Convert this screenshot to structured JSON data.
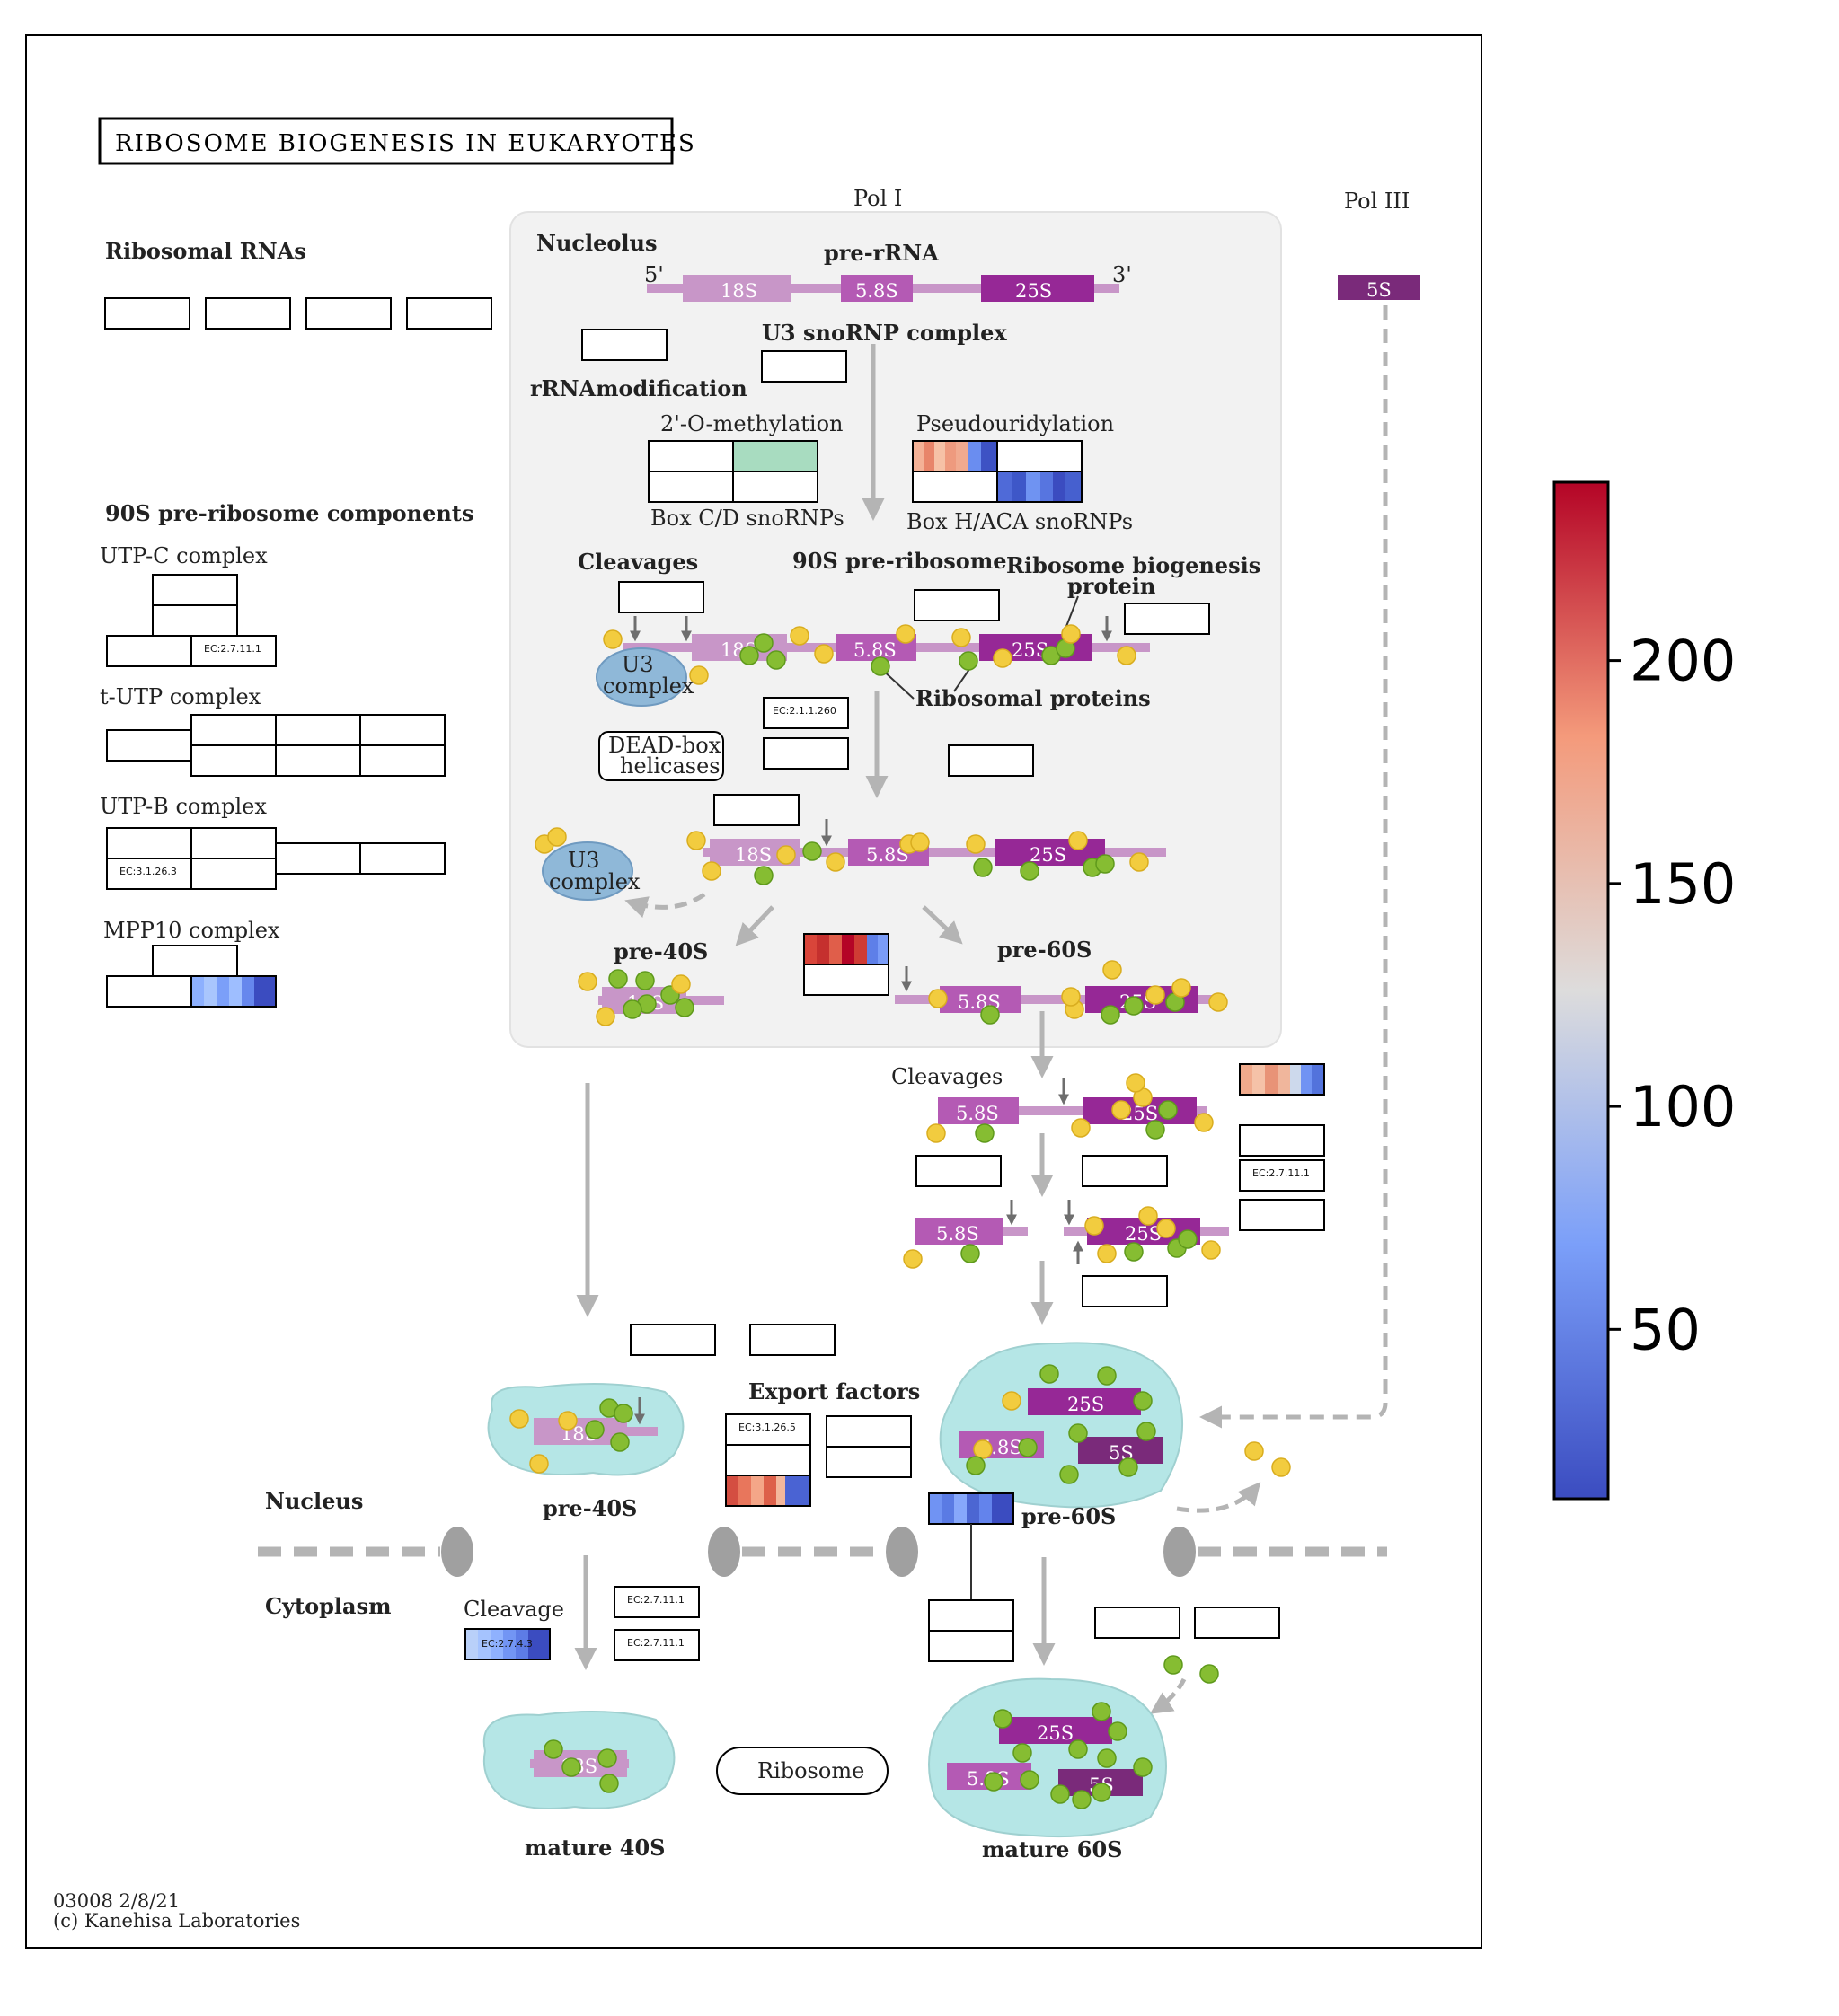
{
  "title": "RIBOSOME BIOGENESIS IN EUKARYOTES",
  "labels": {
    "pol1": "Pol I",
    "pol3": "Pol III",
    "nucleolus": "Nucleolus",
    "pre_rrna": "pre-rRNA",
    "five_prime": "5'",
    "three_prime": "3'",
    "ribosomal_rnas": "Ribosomal RNAs",
    "u3_snornp": "U3 snoRNP complex",
    "rrna_modification": "rRNAmodification",
    "methylation": "2'-O-methylation",
    "pseudouridylation": "Pseudouridylation",
    "box_cd": "Box C/D snoRNPs",
    "box_haca": "Box H/ACA snoRNPs",
    "comp_90s": "90S pre-ribosome components",
    "utp_c": "UTP-C complex",
    "t_utp": "t-UTP complex",
    "utp_b": "UTP-B complex",
    "mpp10": "MPP10 complex",
    "cleavages": "Cleavages",
    "pre_ribosome_90s": "90S pre-ribosome",
    "rib_biogenesis_1": "Ribosome biogenesis",
    "rib_biogenesis_2": "protein",
    "ribosomal_proteins": "Ribosomal proteins",
    "u3_1": "U3",
    "u3_2": "complex",
    "dead_1": "DEAD-box",
    "dead_2": "helicases",
    "pre40s": "pre-40S",
    "pre60s": "pre-60S",
    "export_factors": "Export factors",
    "nucleus": "Nucleus",
    "cytoplasm": "Cytoplasm",
    "cleavage": "Cleavage",
    "ribosome": "Ribosome",
    "mature40s": "mature 40S",
    "mature60s": "mature 60S",
    "footer_id": "03008 2/8/21",
    "footer_copy": "(c) Kanehisa Laboratories"
  },
  "rna": {
    "s18": "18S",
    "s58": "5.8S",
    "s25": "25S",
    "s5": "5S"
  },
  "ec": {
    "ec_2_7_11_1": "EC:2.7.11.1",
    "ec_3_1_26_3": "EC:3.1.26.3",
    "ec_2_1_1_260": "EC:2.1.1.260",
    "ec_3_1_26_5": "EC:3.1.26.5",
    "ec_2_7_4_3": "EC:2.7.4.3"
  },
  "colors": {
    "rrna_18s": "#c896c8",
    "rrna_58s": "#b45ab4",
    "rrna_25s": "#962896",
    "rrna_5s": "#7a2a7a",
    "particle_fill": "#b5e6e6",
    "nucleolus_bg": "#f2f2f2"
  },
  "colorbar": {
    "ticks": [
      {
        "value": 200,
        "label": "200"
      },
      {
        "value": 150,
        "label": "150"
      },
      {
        "value": 100,
        "label": "100"
      },
      {
        "value": 50,
        "label": "50"
      }
    ],
    "min": 12,
    "max": 240,
    "colormap": "coolwarm"
  }
}
